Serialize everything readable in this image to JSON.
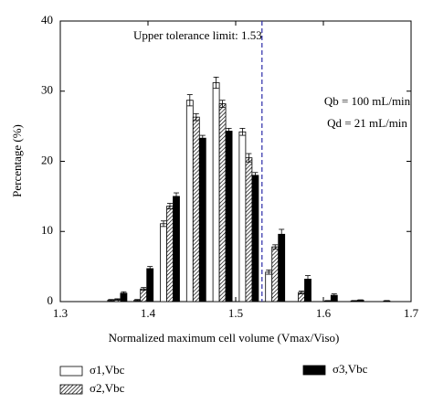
{
  "chart_data": {
    "type": "bar",
    "x_label": "Normalized maximum cell volume (Vmax/Viso)",
    "y_label": "Percentage (%)",
    "x": [
      1.365,
      1.395,
      1.425,
      1.455,
      1.485,
      1.515,
      1.545,
      1.575,
      1.605,
      1.635,
      1.665
    ],
    "series": [
      {
        "name": "σ1,Vbc",
        "color": "#ffffff",
        "values": [
          0.2,
          0.2,
          11.1,
          28.7,
          31.2,
          24.2,
          4.2,
          0,
          0,
          0,
          0
        ],
        "errors": [
          0.1,
          0.1,
          0.4,
          0.8,
          0.8,
          0.5,
          0.3,
          0,
          0,
          0,
          0
        ]
      },
      {
        "name": "σ2,Vbc",
        "color": "hatched",
        "values": [
          0.3,
          1.8,
          13.6,
          26.3,
          28.2,
          20.5,
          7.8,
          1.3,
          0.1,
          0.1,
          0
        ],
        "errors": [
          0.1,
          0.2,
          0.4,
          0.5,
          0.5,
          0.6,
          0.3,
          0.2,
          0.05,
          0.05,
          0
        ]
      },
      {
        "name": "σ3,Vbc",
        "color": "#000000",
        "values": [
          1.2,
          4.7,
          15.0,
          23.3,
          24.3,
          18.0,
          9.6,
          3.2,
          0.9,
          0.2,
          0.1
        ],
        "errors": [
          0.2,
          0.3,
          0.5,
          0.4,
          0.4,
          0.4,
          0.7,
          0.5,
          0.2,
          0.05,
          0.05
        ]
      }
    ],
    "xlim": [
      1.3,
      1.7
    ],
    "xticks": [
      1.3,
      1.4,
      1.5,
      1.6,
      1.7
    ],
    "ylim": [
      0,
      40
    ],
    "yticks": [
      0,
      10,
      20,
      30,
      40
    ],
    "reference_line": {
      "x": 1.53,
      "label": "Upper tolerance limit: 1.53",
      "color": "#2a2aa8"
    },
    "annotations": [
      "Qb = 100 mL/min",
      "Qd = 21 mL/min"
    ]
  }
}
